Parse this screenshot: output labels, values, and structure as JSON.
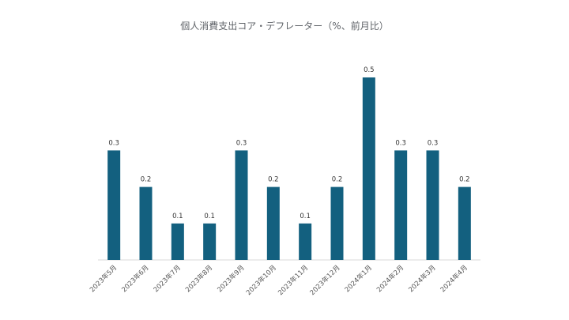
{
  "chart_data": {
    "type": "bar",
    "title": "個人消費支出コア・デフレーター（%、前月比）",
    "categories": [
      "2023年5月",
      "2023年6月",
      "2023年7月",
      "2023年8月",
      "2023年9月",
      "2023年10月",
      "2023年11月",
      "2023年12月",
      "2024年1月",
      "2024年2月",
      "2024年3月",
      "2024年4月"
    ],
    "values": [
      0.3,
      0.2,
      0.1,
      0.1,
      0.3,
      0.2,
      0.1,
      0.2,
      0.5,
      0.3,
      0.3,
      0.2
    ],
    "data_labels": [
      "0.3",
      "0.2",
      "0.1",
      "0.1",
      "0.3",
      "0.2",
      "0.1",
      "0.2",
      "0.5",
      "0.3",
      "0.3",
      "0.2"
    ],
    "xlabel": "",
    "ylabel": "",
    "ylim": [
      0,
      0.5
    ],
    "grid": false,
    "legend": "none",
    "colors": {
      "bar": "#13607f",
      "axis": "#d9d9d9"
    }
  }
}
